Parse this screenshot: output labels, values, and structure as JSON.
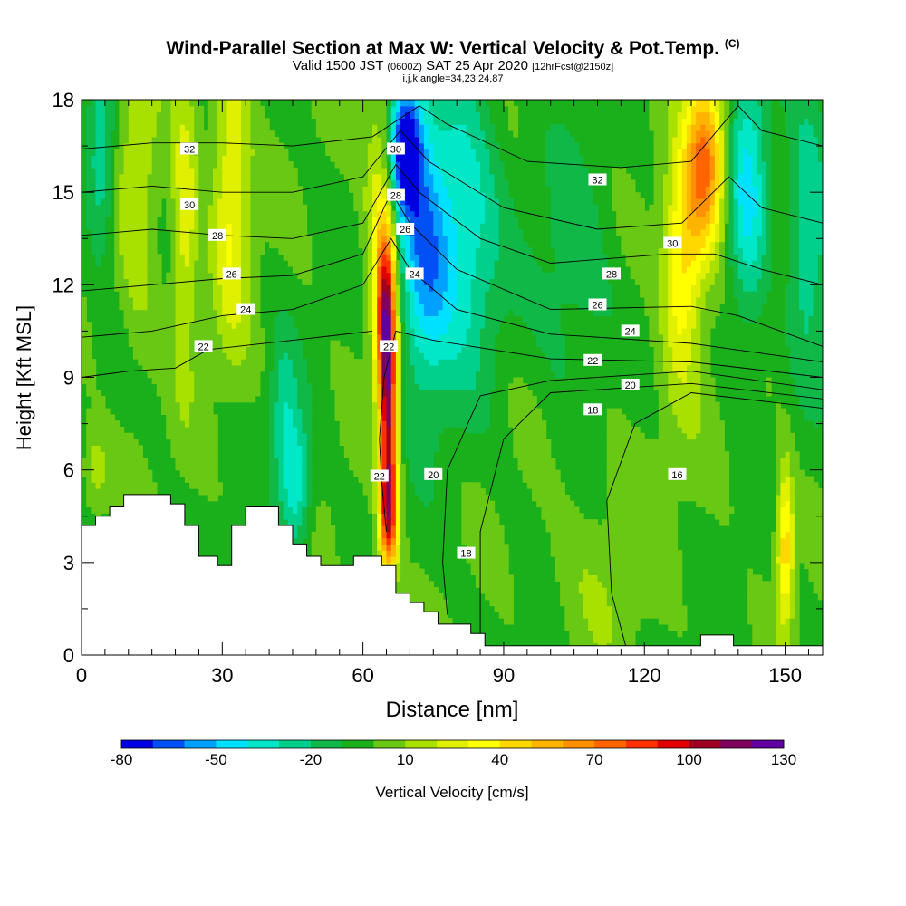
{
  "chart_data": {
    "type": "heatmap",
    "title": "Wind-Parallel Section at Max W: Vertical Velocity & Pot.Temp.",
    "title_mark": "(C)",
    "subtitle": {
      "prefix": "Valid 1500 JST",
      "utc": "(0600Z)",
      "date": "SAT 25 Apr 2020",
      "fcst": "[12hrFcst@2150z]"
    },
    "params": "i,j,k,angle=34,23,24,87",
    "xlabel": "Distance [nm]",
    "ylabel": "Height [Kft MSL]",
    "xlim": [
      0,
      158
    ],
    "ylim": [
      0,
      18
    ],
    "xticks": [
      0,
      30,
      60,
      90,
      120,
      150
    ],
    "yticks": [
      0,
      3,
      6,
      9,
      12,
      15,
      18
    ],
    "colorbar": {
      "label": "Vertical Velocity [cm/s]",
      "tick_labels": [
        "-80",
        "-50",
        "-20",
        "10",
        "40",
        "70",
        "100",
        "130"
      ],
      "colors": [
        "#0000e0",
        "#0050f5",
        "#00a0ff",
        "#00e0ff",
        "#00e8c8",
        "#00d08c",
        "#10b848",
        "#1ab01c",
        "#68c814",
        "#a8e000",
        "#e0f000",
        "#ffff00",
        "#ffd800",
        "#ffb400",
        "#ff9000",
        "#ff6400",
        "#ff3000",
        "#e00000",
        "#a00020",
        "#800060",
        "#6000a0"
      ]
    },
    "terrain_profile": [
      [
        0,
        4.2
      ],
      [
        3,
        4.2
      ],
      [
        3,
        4.5
      ],
      [
        6,
        4.5
      ],
      [
        6,
        4.8
      ],
      [
        9,
        4.8
      ],
      [
        9,
        5.2
      ],
      [
        19,
        5.2
      ],
      [
        19,
        4.9
      ],
      [
        22,
        4.9
      ],
      [
        22,
        4.2
      ],
      [
        25,
        4.2
      ],
      [
        25,
        3.2
      ],
      [
        29,
        3.2
      ],
      [
        29,
        2.9
      ],
      [
        32,
        2.9
      ],
      [
        32,
        4.2
      ],
      [
        35,
        4.2
      ],
      [
        35,
        4.8
      ],
      [
        42,
        4.8
      ],
      [
        42,
        4.2
      ],
      [
        45,
        4.2
      ],
      [
        45,
        3.6
      ],
      [
        48,
        3.6
      ],
      [
        48,
        3.2
      ],
      [
        51,
        3.2
      ],
      [
        51,
        2.9
      ],
      [
        58,
        2.9
      ],
      [
        58,
        3.2
      ],
      [
        64,
        3.2
      ],
      [
        64,
        2.9
      ],
      [
        67,
        2.9
      ],
      [
        67,
        2.0
      ],
      [
        70,
        2.0
      ],
      [
        70,
        1.7
      ],
      [
        73,
        1.7
      ],
      [
        73,
        1.4
      ],
      [
        76,
        1.4
      ],
      [
        76,
        1.0
      ],
      [
        83,
        1.0
      ],
      [
        83,
        0.7
      ],
      [
        86,
        0.7
      ],
      [
        86,
        0.3
      ],
      [
        132,
        0.3
      ],
      [
        132,
        0.65
      ],
      [
        139,
        0.65
      ],
      [
        139,
        0.3
      ],
      [
        158,
        0.3
      ]
    ],
    "velocity_features": [
      {
        "x": 32,
        "y": 15,
        "value": 35,
        "sx": 3,
        "sy": 3.5
      },
      {
        "x": 22,
        "y": 14,
        "value": 30,
        "sx": 2,
        "sy": 3.5
      },
      {
        "x": 64,
        "y": 15,
        "value": 30,
        "sx": 2.5,
        "sy": 3
      },
      {
        "x": 69,
        "y": 16.5,
        "value": -75,
        "sx": 2.5,
        "sy": 1.5
      },
      {
        "x": 73,
        "y": 13,
        "value": -55,
        "sx": 4,
        "sy": 3
      },
      {
        "x": 82,
        "y": 14,
        "value": -35,
        "sx": 5,
        "sy": 3.5
      },
      {
        "x": 65.5,
        "y": 7.8,
        "value": 100,
        "sx": 1.3,
        "sy": 3.2
      },
      {
        "x": 64.5,
        "y": 11,
        "value": 70,
        "sx": 1.5,
        "sy": 2
      },
      {
        "x": 65.5,
        "y": 4.5,
        "value": 55,
        "sx": 1.5,
        "sy": 1.2
      },
      {
        "x": 46,
        "y": 5.5,
        "value": -35,
        "sx": 2,
        "sy": 1.5
      },
      {
        "x": 43,
        "y": 7.5,
        "value": -25,
        "sx": 2,
        "sy": 2
      },
      {
        "x": 133,
        "y": 16,
        "value": 75,
        "sx": 3,
        "sy": 2
      },
      {
        "x": 128,
        "y": 12.5,
        "value": 45,
        "sx": 3,
        "sy": 2.5
      },
      {
        "x": 142,
        "y": 15,
        "value": -40,
        "sx": 3,
        "sy": 3
      },
      {
        "x": 155,
        "y": 14,
        "value": -30,
        "sx": 3,
        "sy": 3
      },
      {
        "x": 150,
        "y": 3.5,
        "value": 50,
        "sx": 1.3,
        "sy": 1.8
      },
      {
        "x": 105,
        "y": 12,
        "value": -15,
        "sx": 6,
        "sy": 3
      },
      {
        "x": 4,
        "y": 16,
        "value": -30,
        "sx": 2,
        "sy": 2
      },
      {
        "x": 12,
        "y": 15,
        "value": 20,
        "sx": 3,
        "sy": 4
      },
      {
        "x": 3,
        "y": 6,
        "value": 20,
        "sx": 2,
        "sy": 1
      },
      {
        "x": 110,
        "y": 2.5,
        "value": 10,
        "sx": 8,
        "sy": 2
      },
      {
        "x": 120,
        "y": 7,
        "value": 5,
        "sx": 10,
        "sy": 2
      },
      {
        "x": 98,
        "y": 4,
        "value": 0,
        "sx": 8,
        "sy": 3
      }
    ],
    "theta_contours": [
      {
        "label": "16",
        "points": [
          [
            158,
            8.0
          ],
          [
            130,
            8.5
          ],
          [
            118,
            7.5
          ],
          [
            112,
            5
          ],
          [
            113,
            2
          ],
          [
            116,
            0.3
          ]
        ],
        "label_pos": [
          127,
          5.85
        ]
      },
      {
        "label": "18",
        "points": [
          [
            158,
            8.3
          ],
          [
            130,
            8.8
          ],
          [
            100,
            8.5
          ],
          [
            90,
            7
          ],
          [
            85,
            4
          ],
          [
            85,
            0.6
          ]
        ],
        "label_pos": [
          82,
          3.3
        ]
      },
      {
        "label": "18",
        "points": [],
        "label_pos": [
          109,
          7.95
        ]
      },
      {
        "label": "20",
        "points": [
          [
            158,
            8.6
          ],
          [
            130,
            9.2
          ],
          [
            100,
            8.9
          ],
          [
            85,
            8.4
          ],
          [
            78,
            6
          ],
          [
            77,
            3
          ],
          [
            78,
            1.3
          ]
        ],
        "label_pos": [
          75,
          5.85
        ]
      },
      {
        "label": "20",
        "points": [],
        "label_pos": [
          117,
          8.75
        ]
      },
      {
        "label": "22",
        "points": [
          [
            158,
            9.0
          ],
          [
            130,
            9.5
          ],
          [
            100,
            9.6
          ],
          [
            75,
            10.2
          ],
          [
            67,
            10.5
          ],
          [
            64.5,
            9
          ],
          [
            63.5,
            7
          ],
          [
            64,
            5.6
          ],
          [
            65,
            4
          ]
        ],
        "label_pos": [
          63.5,
          5.8
        ]
      },
      {
        "label": "22",
        "points": [],
        "label_pos": [
          65.5,
          10.0
        ]
      },
      {
        "label": "22",
        "points": [],
        "label_pos": [
          109,
          9.55
        ]
      },
      {
        "label": "22",
        "points": [
          [
            62,
            10.5
          ],
          [
            45,
            10.2
          ],
          [
            33,
            10.0
          ],
          [
            27,
            9.9
          ],
          [
            20,
            9.3
          ],
          [
            10,
            9.2
          ],
          [
            0,
            9.0
          ]
        ],
        "label_pos": [
          26,
          10.0
        ]
      },
      {
        "label": "24",
        "points": [
          [
            158,
            9.5
          ],
          [
            130,
            10.1
          ],
          [
            100,
            10.4
          ],
          [
            80,
            11.2
          ],
          [
            70,
            12.5
          ],
          [
            66,
            13.5
          ],
          [
            60,
            12
          ],
          [
            45,
            11.2
          ],
          [
            30,
            11
          ],
          [
            15,
            10.5
          ],
          [
            0,
            10.3
          ]
        ],
        "label_pos": [
          71,
          12.35
        ]
      },
      {
        "label": "24",
        "points": [],
        "label_pos": [
          117,
          10.5
        ]
      },
      {
        "label": "24",
        "points": [],
        "label_pos": [
          35,
          11.2
        ]
      },
      {
        "label": "26",
        "points": [
          [
            158,
            10
          ],
          [
            140,
            11
          ],
          [
            130,
            11.3
          ],
          [
            100,
            11.2
          ],
          [
            80,
            12.5
          ],
          [
            70,
            14
          ],
          [
            66,
            15
          ],
          [
            60,
            13
          ],
          [
            45,
            12.3
          ],
          [
            30,
            12.2
          ],
          [
            15,
            12
          ],
          [
            0,
            11.8
          ]
        ],
        "label_pos": [
          69,
          13.8
        ]
      },
      {
        "label": "26",
        "points": [],
        "label_pos": [
          110,
          11.35
        ]
      },
      {
        "label": "26",
        "points": [],
        "label_pos": [
          32,
          12.35
        ]
      },
      {
        "label": "28",
        "points": [
          [
            158,
            12
          ],
          [
            145,
            12.5
          ],
          [
            135,
            13
          ],
          [
            125,
            13
          ],
          [
            100,
            12.7
          ],
          [
            85,
            13.5
          ],
          [
            72,
            15
          ],
          [
            67,
            15.9
          ],
          [
            60,
            14
          ],
          [
            45,
            13.5
          ],
          [
            30,
            13.6
          ],
          [
            15,
            13.8
          ],
          [
            0,
            13.6
          ]
        ],
        "label_pos": [
          67,
          14.9
        ]
      },
      {
        "label": "28",
        "points": [],
        "label_pos": [
          113,
          12.35
        ]
      },
      {
        "label": "28",
        "points": [],
        "label_pos": [
          29,
          13.6
        ]
      },
      {
        "label": "30",
        "points": [
          [
            158,
            14
          ],
          [
            145,
            14.5
          ],
          [
            138,
            15.5
          ],
          [
            128,
            14
          ],
          [
            110,
            13.8
          ],
          [
            90,
            14.5
          ],
          [
            74,
            16
          ],
          [
            68,
            17
          ],
          [
            60,
            15.5
          ],
          [
            45,
            15
          ],
          [
            30,
            15
          ],
          [
            15,
            15.2
          ],
          [
            0,
            15
          ]
        ],
        "label_pos": [
          67,
          16.4
        ]
      },
      {
        "label": "30",
        "points": [],
        "label_pos": [
          126,
          13.35
        ]
      },
      {
        "label": "30",
        "points": [],
        "label_pos": [
          23,
          14.6
        ]
      },
      {
        "label": "32",
        "points": [
          [
            158,
            16.5
          ],
          [
            145,
            17
          ],
          [
            140,
            17.8
          ],
          [
            130,
            16
          ],
          [
            115,
            15.8
          ],
          [
            95,
            16
          ],
          [
            78,
            17.2
          ],
          [
            72,
            17.8
          ],
          [
            62,
            16.8
          ],
          [
            45,
            16.5
          ],
          [
            30,
            16.6
          ],
          [
            15,
            16.6
          ],
          [
            0,
            16.4
          ]
        ],
        "label_pos": [
          110,
          15.4
        ]
      },
      {
        "label": "32",
        "points": [],
        "label_pos": [
          23,
          16.4
        ]
      }
    ]
  }
}
